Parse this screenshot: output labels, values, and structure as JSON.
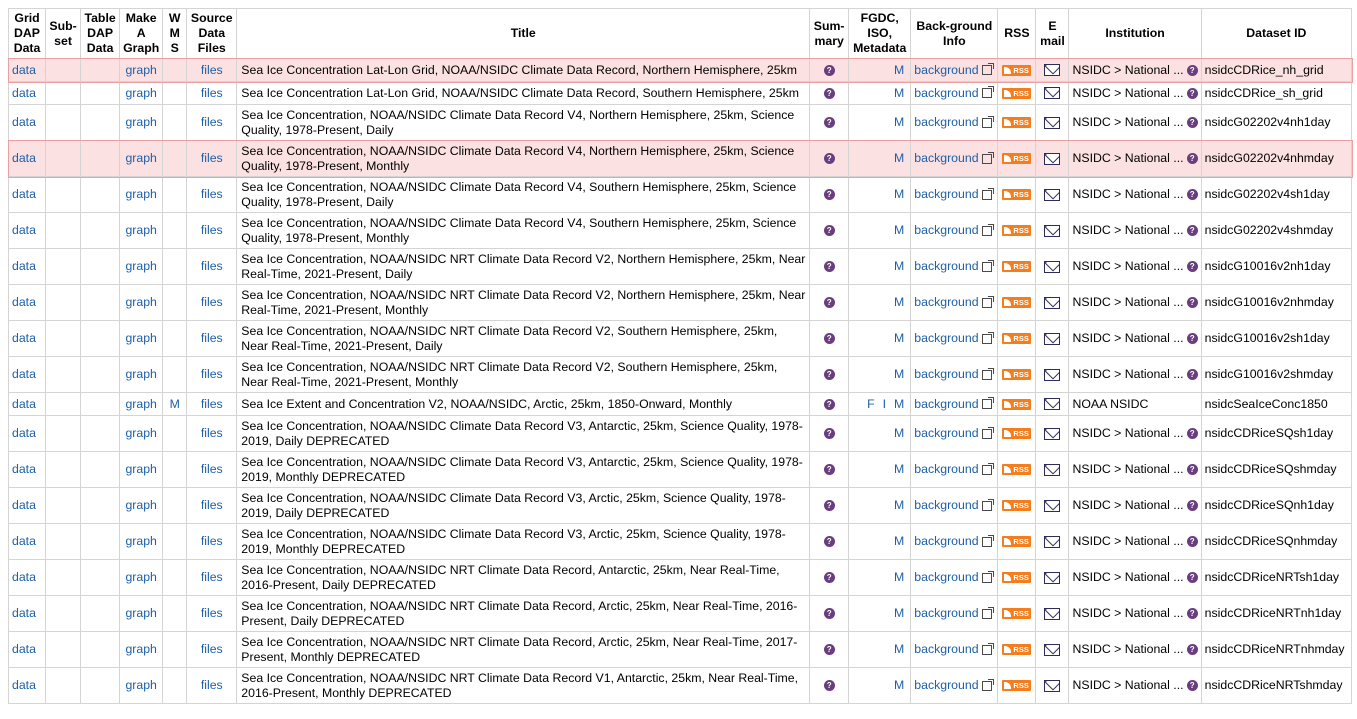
{
  "headers": {
    "griddap": "Grid DAP Data",
    "subset": "Sub-set",
    "tabledap": "Table DAP Data",
    "graph": "Make A Graph",
    "wms": "W M S",
    "files": "Source Data Files",
    "title": "Title",
    "summary": "Sum-mary",
    "metadata": "FGDC, ISO, Metadata",
    "background": "Back-ground Info",
    "rss": "RSS",
    "email": "E mail",
    "institution": "Institution",
    "dataset_id": "Dataset ID"
  },
  "labels": {
    "data": "data",
    "graph": "graph",
    "files": "files",
    "wms": "M",
    "iso_m": "M",
    "fgdc_f": "F",
    "iso_i": "I",
    "background": "background",
    "rss": "RSS",
    "summary_q": "?"
  },
  "rows": [
    {
      "title": "Sea Ice Concentration Lat-Lon Grid, NOAA/NSIDC Climate Data Record, Northern Hemisphere, 25km",
      "institution": "NSIDC > National ...",
      "id": "nsidcCDRice_nh_grid",
      "hl": true,
      "wms": false,
      "fgdc": false,
      "inst_q": true
    },
    {
      "title": "Sea Ice Concentration Lat-Lon Grid, NOAA/NSIDC Climate Data Record, Southern Hemisphere, 25km",
      "institution": "NSIDC > National ...",
      "id": "nsidcCDRice_sh_grid",
      "hl": false,
      "wms": false,
      "fgdc": false,
      "inst_q": true
    },
    {
      "title": "Sea Ice Concentration, NOAA/NSIDC Climate Data Record V4, Northern Hemisphere, 25km, Science Quality, 1978-Present, Daily",
      "institution": "NSIDC > National ...",
      "id": "nsidcG02202v4nh1day",
      "hl": false,
      "wms": false,
      "fgdc": false,
      "inst_q": true
    },
    {
      "title": "Sea Ice Concentration, NOAA/NSIDC Climate Data Record V4, Northern Hemisphere, 25km, Science Quality, 1978-Present, Monthly",
      "institution": "NSIDC > National ...",
      "id": "nsidcG02202v4nhmday",
      "hl": true,
      "wms": false,
      "fgdc": false,
      "inst_q": true
    },
    {
      "title": "Sea Ice Concentration, NOAA/NSIDC Climate Data Record V4, Southern Hemisphere, 25km, Science Quality, 1978-Present, Daily",
      "institution": "NSIDC > National ...",
      "id": "nsidcG02202v4sh1day",
      "hl": false,
      "wms": false,
      "fgdc": false,
      "inst_q": true
    },
    {
      "title": "Sea Ice Concentration, NOAA/NSIDC Climate Data Record V4, Southern Hemisphere, 25km, Science Quality, 1978-Present, Monthly",
      "institution": "NSIDC > National ...",
      "id": "nsidcG02202v4shmday",
      "hl": false,
      "wms": false,
      "fgdc": false,
      "inst_q": true
    },
    {
      "title": "Sea Ice Concentration, NOAA/NSIDC NRT Climate Data Record V2, Northern Hemisphere, 25km, Near Real-Time, 2021-Present, Daily",
      "institution": "NSIDC > National ...",
      "id": "nsidcG10016v2nh1day",
      "hl": false,
      "wms": false,
      "fgdc": false,
      "inst_q": true
    },
    {
      "title": "Sea Ice Concentration, NOAA/NSIDC NRT Climate Data Record V2, Northern Hemisphere, 25km, Near Real-Time, 2021-Present, Monthly",
      "institution": "NSIDC > National ...",
      "id": "nsidcG10016v2nhmday",
      "hl": false,
      "wms": false,
      "fgdc": false,
      "inst_q": true
    },
    {
      "title": "Sea Ice Concentration, NOAA/NSIDC NRT Climate Data Record V2, Southern Hemisphere, 25km, Near Real-Time, 2021-Present, Daily",
      "institution": "NSIDC > National ...",
      "id": "nsidcG10016v2sh1day",
      "hl": false,
      "wms": false,
      "fgdc": false,
      "inst_q": true
    },
    {
      "title": "Sea Ice Concentration, NOAA/NSIDC NRT Climate Data Record V2, Southern Hemisphere, 25km, Near Real-Time, 2021-Present, Monthly",
      "institution": "NSIDC > National ...",
      "id": "nsidcG10016v2shmday",
      "hl": false,
      "wms": false,
      "fgdc": false,
      "inst_q": true
    },
    {
      "title": "Sea Ice Extent and Concentration V2, NOAA/NSIDC, Arctic, 25km, 1850-Onward, Monthly",
      "institution": "NOAA NSIDC",
      "id": "nsidcSeaIceConc1850",
      "hl": false,
      "wms": true,
      "fgdc": true,
      "inst_q": false
    },
    {
      "title": "Sea Ice Concentration, NOAA/NSIDC Climate Data Record V3, Antarctic, 25km, Science Quality, 1978-2019, Daily DEPRECATED",
      "institution": "NSIDC > National ...",
      "id": "nsidcCDRiceSQsh1day",
      "hl": false,
      "wms": false,
      "fgdc": false,
      "inst_q": true
    },
    {
      "title": "Sea Ice Concentration, NOAA/NSIDC Climate Data Record V3, Antarctic, 25km, Science Quality, 1978-2019, Monthly DEPRECATED",
      "institution": "NSIDC > National ...",
      "id": "nsidcCDRiceSQshmday",
      "hl": false,
      "wms": false,
      "fgdc": false,
      "inst_q": true
    },
    {
      "title": "Sea Ice Concentration, NOAA/NSIDC Climate Data Record V3, Arctic, 25km, Science Quality, 1978-2019, Daily DEPRECATED",
      "institution": "NSIDC > National ...",
      "id": "nsidcCDRiceSQnh1day",
      "hl": false,
      "wms": false,
      "fgdc": false,
      "inst_q": true
    },
    {
      "title": "Sea Ice Concentration, NOAA/NSIDC Climate Data Record V3, Arctic, 25km, Science Quality, 1978-2019, Monthly DEPRECATED",
      "institution": "NSIDC > National ...",
      "id": "nsidcCDRiceSQnhmday",
      "hl": false,
      "wms": false,
      "fgdc": false,
      "inst_q": true
    },
    {
      "title": "Sea Ice Concentration, NOAA/NSIDC NRT Climate Data Record, Antarctic, 25km, Near Real-Time, 2016-Present, Daily DEPRECATED",
      "institution": "NSIDC > National ...",
      "id": "nsidcCDRiceNRTsh1day",
      "hl": false,
      "wms": false,
      "fgdc": false,
      "inst_q": true
    },
    {
      "title": "Sea Ice Concentration, NOAA/NSIDC NRT Climate Data Record, Arctic, 25km, Near Real-Time, 2016-Present, Daily DEPRECATED",
      "institution": "NSIDC > National ...",
      "id": "nsidcCDRiceNRTnh1day",
      "hl": false,
      "wms": false,
      "fgdc": false,
      "inst_q": true
    },
    {
      "title": "Sea Ice Concentration, NOAA/NSIDC NRT Climate Data Record, Arctic, 25km, Near Real-Time, 2017-Present, Monthly DEPRECATED",
      "institution": "NSIDC > National ...",
      "id": "nsidcCDRiceNRTnhmday",
      "hl": false,
      "wms": false,
      "fgdc": false,
      "inst_q": true
    },
    {
      "title": "Sea Ice Concentration, NOAA/NSIDC NRT Climate Data Record V1, Antarctic, 25km, Near Real-Time, 2016-Present, Monthly DEPRECATED",
      "institution": "NSIDC > National ...",
      "id": "nsidcCDRiceNRTshmday",
      "hl": false,
      "wms": false,
      "fgdc": false,
      "inst_q": true
    }
  ],
  "colors": {
    "link": "#1d5fa8",
    "highlight_row": "#fbe1e1",
    "rss": "#f47e1e",
    "help_icon": "#6a3d7e"
  }
}
